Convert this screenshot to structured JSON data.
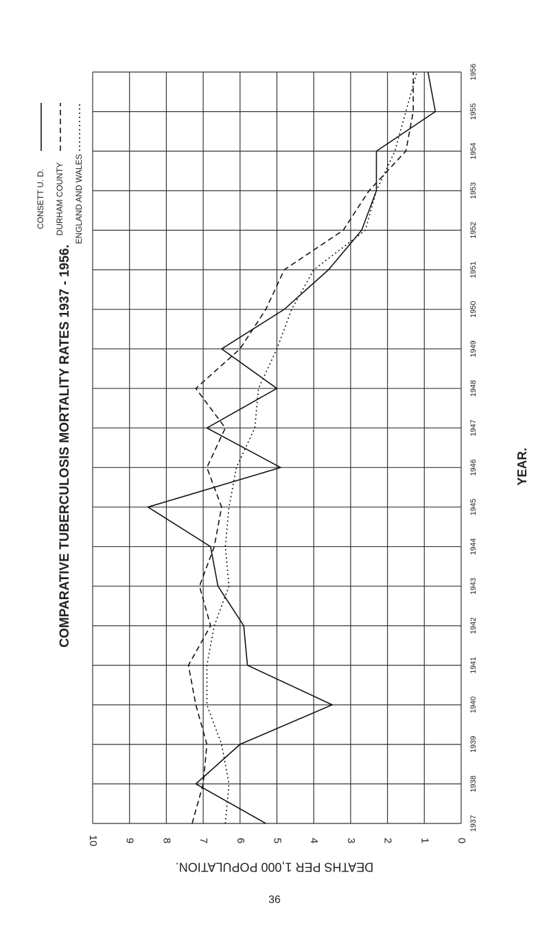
{
  "chart_data": {
    "type": "line",
    "title": "COMPARATIVE TUBERCULOSIS MORTALITY RATES 1937 - 1956.",
    "x_label": "YEAR.",
    "y_label": "DEATHS PER 1,000 POPULATION.",
    "page_number": "36",
    "x": [
      1937,
      1938,
      1939,
      1940,
      1941,
      1942,
      1943,
      1944,
      1945,
      1946,
      1947,
      1948,
      1949,
      1950,
      1951,
      1952,
      1953,
      1954,
      1955,
      1956
    ],
    "xlim": [
      1937,
      1956
    ],
    "ylim": [
      0,
      10
    ],
    "yticks": [
      0,
      1,
      2,
      3,
      4,
      5,
      6,
      7,
      8,
      9,
      10
    ],
    "grid": true,
    "series": [
      {
        "name": "CONSETT U. D.",
        "color": "#111111",
        "dash": "solid",
        "values": [
          5.3,
          7.2,
          6.0,
          3.5,
          5.8,
          5.9,
          6.6,
          6.8,
          8.5,
          4.9,
          6.9,
          5.0,
          6.5,
          4.8,
          3.6,
          2.7,
          2.3,
          2.3,
          0.7,
          0.9
        ]
      },
      {
        "name": "DURHAM COUNTY",
        "color": "#111111",
        "dash": "dashed",
        "values": [
          7.3,
          7.0,
          6.9,
          7.2,
          7.4,
          6.8,
          7.1,
          6.7,
          6.5,
          6.9,
          6.4,
          7.2,
          6.0,
          5.3,
          4.8,
          3.2,
          2.5,
          1.5,
          1.3,
          1.3
        ]
      },
      {
        "name": "ENGLAND AND WALES",
        "color": "#111111",
        "dash": "dotted",
        "values": [
          6.4,
          6.3,
          6.5,
          6.9,
          6.9,
          6.7,
          6.3,
          6.4,
          6.3,
          6.1,
          5.6,
          5.5,
          5.0,
          4.6,
          4.0,
          2.6,
          2.3,
          1.8,
          1.5,
          1.2
        ]
      }
    ]
  }
}
